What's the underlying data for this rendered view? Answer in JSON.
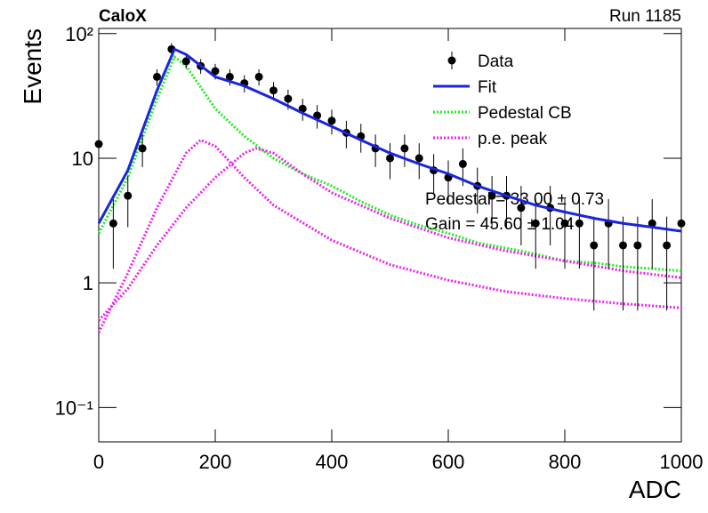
{
  "chart_data": {
    "type": "line",
    "title": "CaloX",
    "subtitle": "Run 1185",
    "x_label": "ADC",
    "y_label": "Events",
    "annotations": [
      "Pedestal = 33.00 ± 0.73",
      "Gain = 45.60 ± 1.04"
    ],
    "xlim": [
      0,
      1000
    ],
    "xticks": [
      0,
      200,
      400,
      600,
      800,
      1000
    ],
    "ylim": [
      0.053,
      110
    ],
    "log_y": true,
    "yticks": [
      {
        "value": 0.1,
        "label": "10⁻¹"
      },
      1,
      10,
      {
        "value": 100,
        "label": "10²"
      }
    ],
    "legend": "upper right",
    "series": [
      {
        "name": "Data",
        "style": "points",
        "color": "#000000",
        "x": [
          0,
          25,
          50,
          75,
          100,
          125,
          150,
          175,
          200,
          225,
          250,
          275,
          300,
          325,
          350,
          375,
          400,
          425,
          450,
          475,
          500,
          525,
          550,
          575,
          600,
          625,
          650,
          675,
          700,
          725,
          750,
          775,
          800,
          825,
          850,
          875,
          900,
          925,
          950,
          975,
          1000
        ],
        "values": [
          13,
          3,
          5,
          12,
          45,
          75,
          60,
          55,
          50,
          45,
          40,
          45,
          35,
          30,
          25,
          22,
          20,
          16,
          15,
          12,
          10,
          12,
          10,
          8,
          7,
          9,
          6,
          5,
          5,
          4,
          3,
          4,
          3,
          3,
          2,
          3,
          2,
          2,
          3,
          2,
          3
        ],
        "errors": [
          3.6,
          1.7,
          2.2,
          3.5,
          6.7,
          8.7,
          7.7,
          7.4,
          7.1,
          6.7,
          6.3,
          6.7,
          5.9,
          5.5,
          5,
          4.7,
          4.5,
          4,
          3.9,
          3.5,
          3.2,
          3.5,
          3.2,
          2.8,
          2.6,
          3,
          2.4,
          2.2,
          2.2,
          2,
          1.7,
          2,
          1.7,
          1.7,
          1.4,
          1.7,
          1.4,
          1.4,
          1.7,
          1.4,
          1.7
        ]
      },
      {
        "name": "Fit",
        "style": "solid",
        "color": "#1a25dd",
        "x": [
          0,
          50,
          100,
          130,
          150,
          200,
          250,
          300,
          350,
          400,
          450,
          500,
          550,
          600,
          650,
          700,
          750,
          800,
          850,
          900,
          950,
          1000
        ],
        "values": [
          3,
          8,
          35,
          75,
          68,
          45,
          38,
          30,
          23,
          18,
          14,
          11,
          9,
          7.5,
          6,
          5,
          4.2,
          3.7,
          3.3,
          3,
          2.8,
          2.6
        ]
      },
      {
        "name": "Pedestal CB",
        "style": "dotted",
        "color": "#22ee22",
        "x": [
          0,
          50,
          100,
          130,
          150,
          200,
          250,
          300,
          350,
          400,
          450,
          500,
          550,
          600,
          650,
          700,
          750,
          800,
          850,
          900,
          950,
          1000
        ],
        "values": [
          2.5,
          7,
          30,
          65,
          55,
          25,
          15,
          10,
          7.5,
          6,
          4.5,
          3.5,
          2.9,
          2.5,
          2.1,
          1.9,
          1.7,
          1.5,
          1.45,
          1.35,
          1.3,
          1.25
        ]
      },
      {
        "name": "p.e. peak",
        "style": "dotted",
        "color": "#ee22ee",
        "x": [
          0,
          50,
          100,
          150,
          175,
          200,
          250,
          300,
          400,
          500,
          600,
          700,
          800,
          900,
          1000
        ],
        "values": [
          0.4,
          1.2,
          4,
          11,
          14,
          12.5,
          7,
          4.2,
          2.2,
          1.4,
          1.05,
          0.85,
          0.75,
          0.68,
          0.63
        ]
      },
      {
        "name": "p.e. peak",
        "style": "dotted",
        "color": "#ee22ee",
        "x": [
          0,
          50,
          100,
          150,
          200,
          250,
          270,
          300,
          350,
          400,
          500,
          600,
          700,
          800,
          900,
          1000
        ],
        "values": [
          0.5,
          0.9,
          2,
          4,
          7,
          11,
          12,
          11,
          7.5,
          5.3,
          3.3,
          2.3,
          1.8,
          1.5,
          1.25,
          1.1
        ]
      }
    ]
  }
}
